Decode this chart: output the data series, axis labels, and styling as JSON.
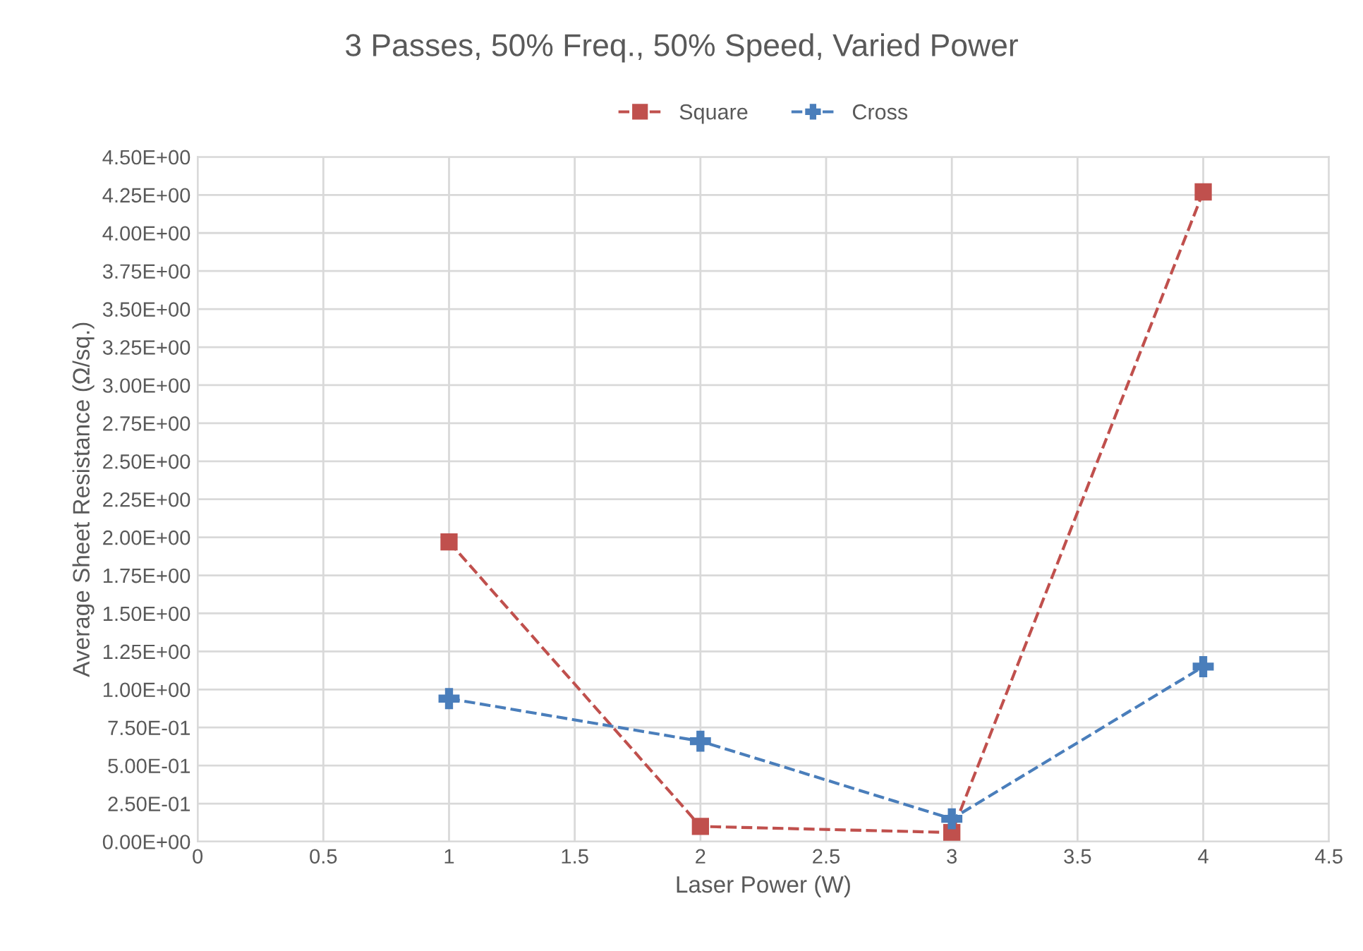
{
  "chart_data": {
    "type": "line",
    "title": "3 Passes, 50% Freq., 50% Speed, Varied Power",
    "xlabel": "Laser Power (W)",
    "ylabel": "Average Sheet Resistance (Ω/sq.)",
    "x": [
      1,
      2,
      3,
      4
    ],
    "series": [
      {
        "name": "Square",
        "color": "#c0504d",
        "values": [
          1.97,
          0.1,
          0.06,
          4.27
        ],
        "marker": "square"
      },
      {
        "name": "Cross",
        "color": "#4a7ebb",
        "values": [
          0.94,
          0.66,
          0.15,
          1.15
        ],
        "marker": "cross"
      }
    ],
    "line_style": "dashed",
    "xlim": [
      0,
      4.5
    ],
    "xticks": [
      0,
      0.5,
      1,
      1.5,
      2,
      2.5,
      3,
      3.5,
      4,
      4.5
    ],
    "ylim": [
      0,
      4.5
    ],
    "yticks": [
      {
        "value": 0,
        "label": "0.00E+00"
      },
      {
        "value": 0.25,
        "label": "2.50E-01"
      },
      {
        "value": 0.5,
        "label": "5.00E-01"
      },
      {
        "value": 0.75,
        "label": "7.50E-01"
      },
      {
        "value": 1,
        "label": "1.00E+00"
      },
      {
        "value": 1.25,
        "label": "1.25E+00"
      },
      {
        "value": 1.5,
        "label": "1.50E+00"
      },
      {
        "value": 1.75,
        "label": "1.75E+00"
      },
      {
        "value": 2,
        "label": "2.00E+00"
      },
      {
        "value": 2.25,
        "label": "2.25E+00"
      },
      {
        "value": 2.5,
        "label": "2.50E+00"
      },
      {
        "value": 2.75,
        "label": "2.75E+00"
      },
      {
        "value": 3,
        "label": "3.00E+00"
      },
      {
        "value": 3.25,
        "label": "3.25E+00"
      },
      {
        "value": 3.5,
        "label": "3.50E+00"
      },
      {
        "value": 3.75,
        "label": "3.75E+00"
      },
      {
        "value": 4,
        "label": "4.00E+00"
      },
      {
        "value": 4.25,
        "label": "4.25E+00"
      },
      {
        "value": 4.5,
        "label": "4.50E+00"
      }
    ],
    "grid": true,
    "legend": "top"
  }
}
